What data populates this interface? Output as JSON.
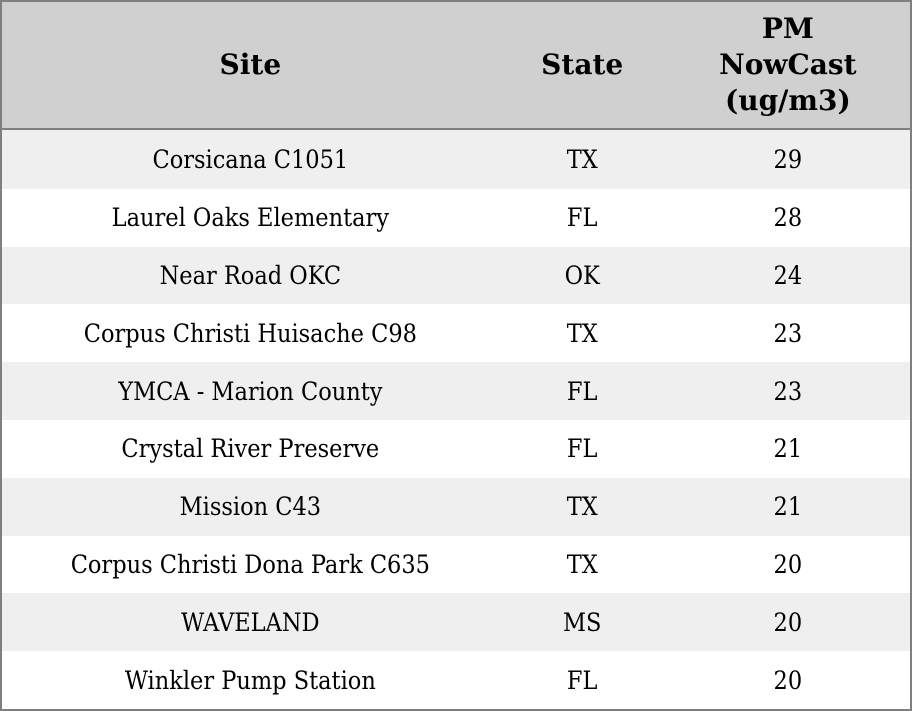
{
  "table": {
    "columns": [
      {
        "label": "Site"
      },
      {
        "label": "State"
      },
      {
        "label": "PM\nNowCast\n(ug/m3)"
      }
    ],
    "rows": [
      {
        "site": "Corsicana C1051",
        "state": "TX",
        "value": 29
      },
      {
        "site": "Laurel Oaks Elementary",
        "state": "FL",
        "value": 28
      },
      {
        "site": "Near Road OKC",
        "state": "OK",
        "value": 24
      },
      {
        "site": "Corpus Christi Huisache C98",
        "state": "TX",
        "value": 23
      },
      {
        "site": "YMCA - Marion County",
        "state": "FL",
        "value": 23
      },
      {
        "site": "Crystal River Preserve",
        "state": "FL",
        "value": 21
      },
      {
        "site": "Mission C43",
        "state": "TX",
        "value": 21
      },
      {
        "site": "Corpus Christi Dona Park C635",
        "state": "TX",
        "value": 20
      },
      {
        "site": "WAVELAND",
        "state": "MS",
        "value": 20
      },
      {
        "site": "Winkler Pump Station",
        "state": "FL",
        "value": 20
      }
    ]
  },
  "colors": {
    "header_bg": "#d0d0d0",
    "row_alt_bg": "#efefef",
    "row_bg": "#ffffff",
    "border": "#7f7f7f",
    "text": "#000000"
  }
}
